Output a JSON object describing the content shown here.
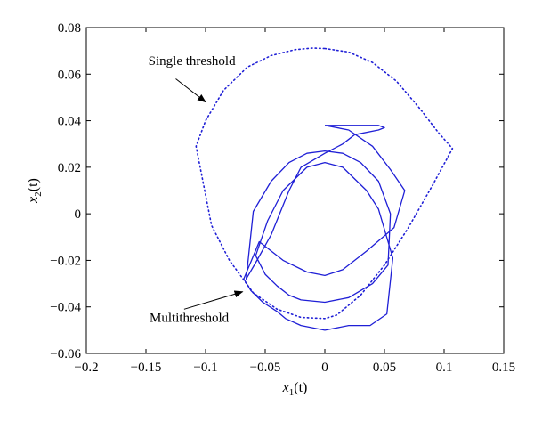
{
  "chart_data": {
    "type": "line",
    "title": "",
    "xlabel": {
      "var": "x",
      "sub": "1",
      "arg": "(t)"
    },
    "ylabel": {
      "var": "x",
      "sub": "2",
      "arg": "(t)"
    },
    "xlim": [
      -0.2,
      0.15
    ],
    "ylim": [
      -0.06,
      0.08
    ],
    "xticks": [
      -0.2,
      -0.15,
      -0.1,
      -0.05,
      0,
      0.05,
      0.1,
      0.15
    ],
    "xtick_labels": [
      "−0.2",
      "−0.15",
      "−0.1",
      "−0.05",
      "0",
      "0.05",
      "0.1",
      "0.15"
    ],
    "yticks": [
      -0.06,
      -0.04,
      -0.02,
      0,
      0.02,
      0.04,
      0.06,
      0.08
    ],
    "ytick_labels": [
      "−0.06",
      "−0.04",
      "−0.02",
      "0",
      "0.02",
      "0.04",
      "0.06",
      "0.08"
    ],
    "grid": false,
    "series": [
      {
        "name": "Single threshold",
        "style": "dotted",
        "color": "#1f1fd6",
        "x": [
          0.0,
          0.02,
          0.04,
          0.06,
          0.08,
          0.095,
          0.107,
          0.09,
          0.07,
          0.05,
          0.03,
          0.01,
          0.0,
          -0.02,
          -0.04,
          -0.06,
          -0.08,
          -0.095,
          -0.108,
          -0.1,
          -0.085,
          -0.065,
          -0.045,
          -0.025,
          -0.01,
          0.0
        ],
        "y": [
          0.071,
          0.0695,
          0.065,
          0.057,
          0.045,
          0.035,
          0.028,
          0.012,
          -0.006,
          -0.022,
          -0.035,
          -0.0435,
          -0.045,
          -0.0445,
          -0.041,
          -0.034,
          -0.02,
          -0.005,
          0.029,
          0.04,
          0.053,
          0.063,
          0.068,
          0.0705,
          0.0712,
          0.071
        ]
      },
      {
        "name": "Multithreshold",
        "style": "solid",
        "color": "#1f1fd6",
        "x": [
          0.0,
          0.02,
          0.04,
          0.055,
          0.067,
          0.058,
          0.035,
          0.015,
          0.0,
          -0.015,
          -0.035,
          -0.055,
          -0.068,
          -0.062,
          -0.052,
          -0.04,
          -0.033,
          -0.02,
          0.0,
          0.02,
          0.038,
          0.052,
          0.057,
          0.045,
          0.035,
          0.015,
          0.0,
          -0.015,
          -0.035,
          -0.048,
          -0.058,
          -0.05,
          -0.04,
          -0.03,
          -0.02,
          0.0,
          0.02,
          0.04,
          0.053,
          0.055,
          0.045,
          0.03,
          0.015,
          0.0,
          -0.015,
          -0.03,
          -0.045,
          -0.06,
          -0.066,
          -0.058,
          -0.045,
          -0.03,
          -0.02,
          0.0,
          0.015,
          0.025,
          0.045,
          0.05,
          0.045,
          0.03,
          0.015,
          0.0
        ],
        "y": [
          0.038,
          0.036,
          0.029,
          0.019,
          0.01,
          -0.006,
          -0.016,
          -0.024,
          -0.0265,
          -0.025,
          -0.02,
          -0.012,
          -0.028,
          -0.033,
          -0.038,
          -0.042,
          -0.045,
          -0.048,
          -0.05,
          -0.048,
          -0.048,
          -0.043,
          -0.019,
          0.002,
          0.01,
          0.02,
          0.022,
          0.02,
          0.01,
          -0.003,
          -0.018,
          -0.026,
          -0.031,
          -0.035,
          -0.037,
          -0.038,
          -0.036,
          -0.03,
          -0.022,
          0.0,
          0.014,
          0.022,
          0.026,
          0.027,
          0.026,
          0.022,
          0.014,
          0.001,
          -0.028,
          -0.021,
          -0.009,
          0.01,
          0.02,
          0.026,
          0.03,
          0.034,
          0.036,
          0.037,
          0.038,
          0.038,
          0.038,
          0.038
        ]
      }
    ],
    "annotations": [
      {
        "text": "Single threshold",
        "text_at": [
          -0.148,
          0.064
        ],
        "arrow_from": [
          -0.125,
          0.058
        ],
        "arrow_to": [
          -0.1,
          0.048
        ]
      },
      {
        "text": "Multithreshold",
        "text_at": [
          -0.147,
          -0.0465
        ],
        "arrow_from": [
          -0.118,
          -0.041
        ],
        "arrow_to": [
          -0.069,
          -0.0335
        ]
      }
    ]
  }
}
